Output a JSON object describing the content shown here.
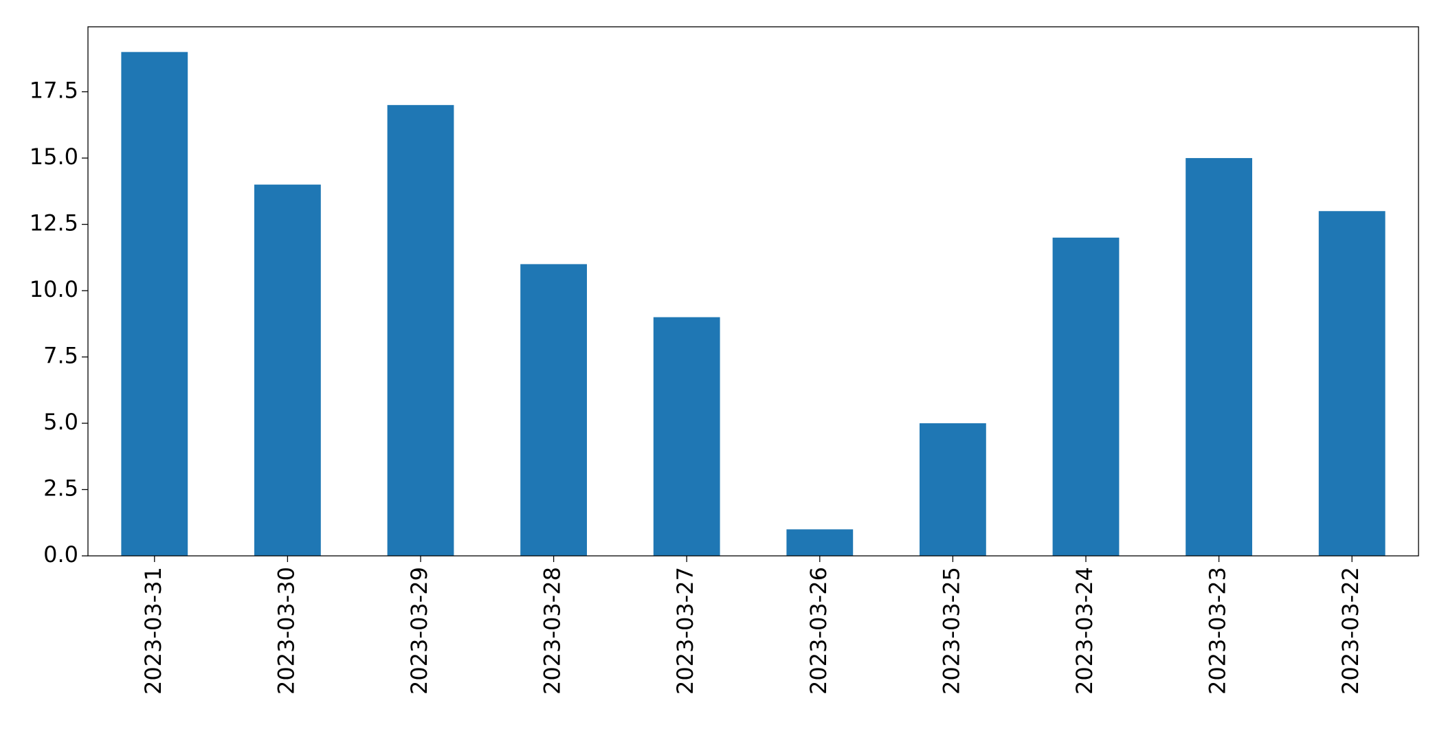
{
  "chart_data": {
    "type": "bar",
    "categories": [
      "2023-03-31",
      "2023-03-30",
      "2023-03-29",
      "2023-03-28",
      "2023-03-27",
      "2023-03-26",
      "2023-03-25",
      "2023-03-24",
      "2023-03-23",
      "2023-03-22"
    ],
    "values": [
      19,
      14,
      17,
      11,
      9,
      1,
      5,
      12,
      15,
      13
    ],
    "color": "#1f77b4",
    "ylim": [
      0,
      19.95
    ],
    "yticks": [
      {
        "value": 0,
        "label": "0.0"
      },
      2.5,
      {
        "value": 5,
        "label": "5.0"
      },
      7.5,
      {
        "value": 10,
        "label": "10.0"
      },
      12.5,
      {
        "value": 15,
        "label": "15.0"
      },
      17.5
    ],
    "grid": false
  }
}
